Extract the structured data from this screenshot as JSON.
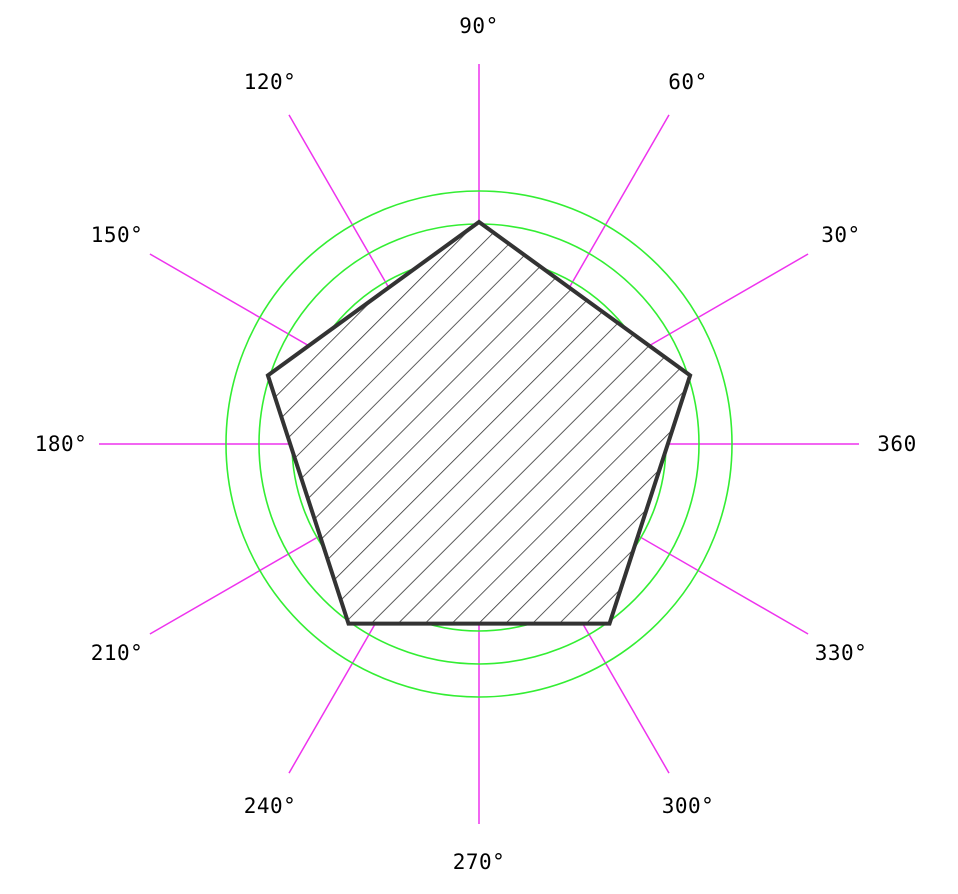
{
  "diagram": {
    "angle_labels": [
      {
        "angle": 0,
        "text": "360"
      },
      {
        "angle": 30,
        "text": "30°"
      },
      {
        "angle": 60,
        "text": "60°"
      },
      {
        "angle": 90,
        "text": "90°"
      },
      {
        "angle": 120,
        "text": "120°"
      },
      {
        "angle": 150,
        "text": "150°"
      },
      {
        "angle": 180,
        "text": "180°"
      },
      {
        "angle": 210,
        "text": "210°"
      },
      {
        "angle": 240,
        "text": "240°"
      },
      {
        "angle": 270,
        "text": "270°"
      },
      {
        "angle": 300,
        "text": "300°"
      },
      {
        "angle": 330,
        "text": "330°"
      }
    ],
    "shape": "regular-pentagon",
    "pentagon_vertex_angles": [
      90,
      162,
      234,
      306,
      18
    ],
    "fill_pattern": "diagonal-hatch",
    "colors": {
      "spokes": "#ee33ee",
      "circles": "#33ee33",
      "pentagon_outline": "#333333",
      "hatch": "#333333",
      "labels": "#000000"
    }
  }
}
